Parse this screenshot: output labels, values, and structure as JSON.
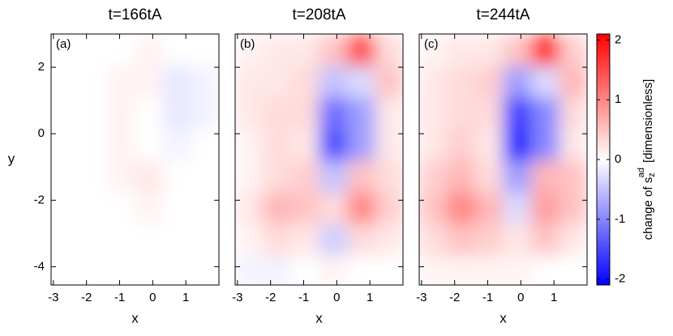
{
  "chart_data": [
    {
      "type": "heatmap",
      "title": "t=166tA",
      "panel_label": "(a)",
      "xlabel": "x",
      "ylabel": "y",
      "x": [
        -2.65,
        -1.8,
        -0.95,
        -0.1,
        0.75,
        1.6
      ],
      "y": [
        2.5,
        1.55,
        0.6,
        -0.35,
        -1.3,
        -2.25,
        -3.2,
        -4.15
      ],
      "values": [
        [
          0,
          0,
          0,
          0.1,
          0,
          0
        ],
        [
          0,
          0,
          0.1,
          0.1,
          -0.2,
          -0.1
        ],
        [
          0,
          0,
          0.1,
          0,
          -0.2,
          -0.1
        ],
        [
          0,
          0,
          0.1,
          0,
          -0.1,
          0
        ],
        [
          0,
          0,
          0.1,
          0.2,
          0,
          0
        ],
        [
          0,
          0,
          0,
          0.1,
          0,
          0
        ],
        [
          0,
          0,
          0,
          0,
          0,
          0
        ],
        [
          0,
          0,
          0,
          0,
          0,
          0
        ]
      ],
      "xlim": [
        -3.07,
        2.0
      ],
      "ylim": [
        -4.55,
        3.0
      ],
      "xticks": [
        -3,
        -2,
        -1,
        0,
        1
      ],
      "yticks": [
        -4,
        -2,
        0,
        2
      ]
    },
    {
      "type": "heatmap",
      "title": "t=208tA",
      "panel_label": "(b)",
      "xlabel": "x",
      "x": [
        -2.65,
        -1.8,
        -0.95,
        -0.1,
        0.75,
        1.6
      ],
      "y": [
        2.5,
        1.55,
        0.6,
        -0.35,
        -1.3,
        -2.25,
        -3.2,
        -4.15
      ],
      "values": [
        [
          0.1,
          0.2,
          0.2,
          0.5,
          1.5,
          0.3
        ],
        [
          0.2,
          0.2,
          0.3,
          -0.5,
          -0.3,
          0.5
        ],
        [
          0.2,
          0.3,
          0.3,
          -1.2,
          -0.8,
          0.2
        ],
        [
          0.1,
          0.3,
          0.2,
          -1.5,
          -0.8,
          0.2
        ],
        [
          0.1,
          0.3,
          0.4,
          -0.5,
          0.5,
          0.3
        ],
        [
          0.2,
          0.6,
          0.5,
          0.3,
          1.0,
          0.4
        ],
        [
          0.1,
          0.3,
          0.2,
          -0.4,
          0.3,
          0.2
        ],
        [
          -0.1,
          -0.1,
          0,
          0.1,
          0,
          0
        ]
      ],
      "xlim": [
        -3.07,
        2.0
      ],
      "ylim": [
        -4.55,
        3.0
      ],
      "xticks": [
        -3,
        -2,
        -1,
        0,
        1
      ],
      "yticks": [
        -4,
        -2,
        0,
        2
      ]
    },
    {
      "type": "heatmap",
      "title": "t=244tA",
      "panel_label": "(c)",
      "xlabel": "x",
      "x": [
        -2.65,
        -1.8,
        -0.95,
        -0.1,
        0.75,
        1.6
      ],
      "y": [
        2.5,
        1.55,
        0.6,
        -0.35,
        -1.3,
        -2.25,
        -3.2,
        -4.15
      ],
      "values": [
        [
          0.1,
          0.2,
          0.2,
          0.5,
          1.8,
          0.4
        ],
        [
          0.2,
          0.3,
          0.4,
          -0.8,
          -0.3,
          0.6
        ],
        [
          0.2,
          0.3,
          0.3,
          -1.6,
          -1.0,
          0.3
        ],
        [
          0.2,
          0.4,
          0.2,
          -1.8,
          -1.0,
          0.2
        ],
        [
          0.4,
          0.6,
          0.3,
          -0.8,
          0.6,
          0.5
        ],
        [
          0.5,
          1.0,
          0.6,
          -0.3,
          0.8,
          0.5
        ],
        [
          0.3,
          0.5,
          0.4,
          0.2,
          0.5,
          0.2
        ],
        [
          0.1,
          0.1,
          0.1,
          0.1,
          0,
          0
        ]
      ],
      "xlim": [
        -3.07,
        2.0
      ],
      "ylim": [
        -4.55,
        3.0
      ],
      "xticks": [
        -3,
        -2,
        -1,
        0,
        1
      ],
      "yticks": [
        -4,
        -2,
        0,
        2
      ]
    }
  ],
  "colorbar": {
    "lim": [
      -2.1,
      2.1
    ],
    "ticks": [
      -2,
      -1,
      0,
      1,
      2
    ],
    "colors": [
      "#0000ff",
      "#ffffff",
      "#ff0000"
    ],
    "label": {
      "text": "change of s",
      "subscript": "z",
      "superscript": "ad",
      "units": "[dimensionless]"
    }
  }
}
